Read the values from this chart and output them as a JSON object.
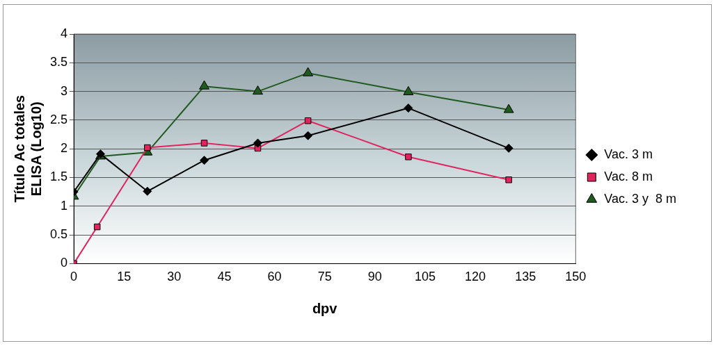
{
  "chart_data": {
    "type": "line",
    "xlabel": "dpv",
    "ylabel": "Título Ac totales\nELISA (Log10)",
    "x": [
      0,
      8,
      22,
      39,
      55,
      70,
      100,
      130
    ],
    "series": [
      {
        "name": "Vac. 3 m",
        "color": "#000000",
        "marker": "diamond",
        "values": [
          1.25,
          1.91,
          1.26,
          1.8,
          2.1,
          2.23,
          2.71,
          2.01
        ]
      },
      {
        "name": "Vac. 8 m",
        "color": "#e0245e",
        "marker": "square",
        "x": [
          0,
          7,
          22,
          39,
          55,
          70,
          100,
          130
        ],
        "values": [
          0,
          0.64,
          2.02,
          2.1,
          2.01,
          2.49,
          1.86,
          1.46
        ]
      },
      {
        "name": "Vac. 3 y  8 m",
        "color": "#1f5a1f",
        "marker": "triangle",
        "values": [
          1.17,
          1.87,
          1.94,
          3.09,
          3.0,
          3.32,
          2.99,
          2.68
        ]
      }
    ],
    "xlim": [
      0,
      150
    ],
    "xticks": [
      0,
      15,
      30,
      45,
      60,
      75,
      90,
      105,
      120,
      135,
      150
    ],
    "ylim": [
      0,
      4
    ],
    "yticks": [
      0,
      0.5,
      1,
      1.5,
      2,
      2.5,
      3,
      3.5,
      4
    ],
    "grid": "y",
    "legend": "right",
    "line_style": "solid"
  }
}
